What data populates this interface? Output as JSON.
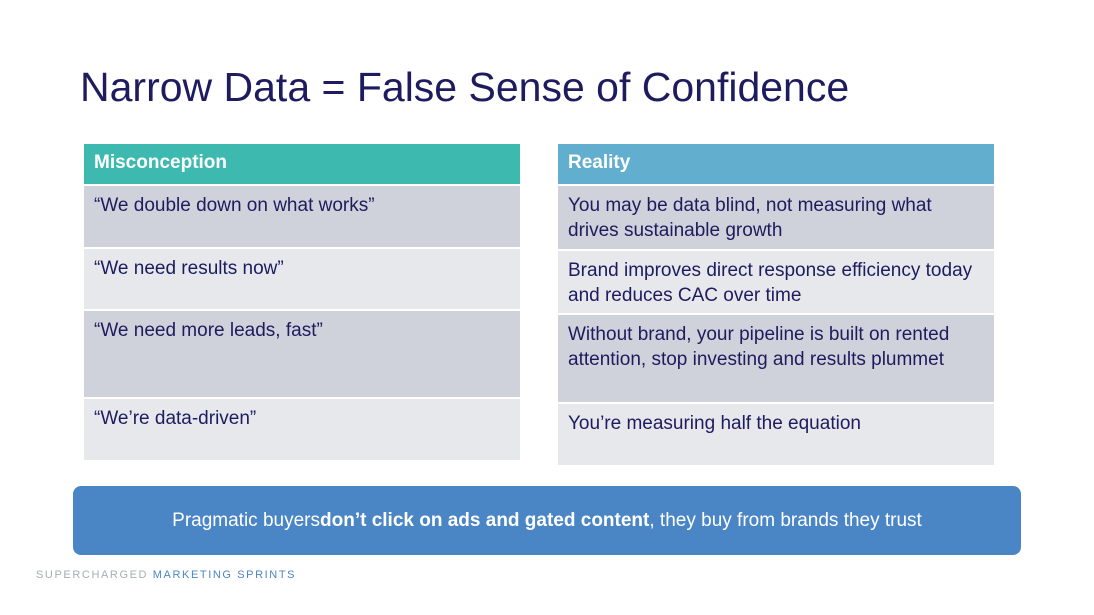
{
  "slide": {
    "title": "Narrow Data = False Sense of Confidence"
  },
  "misconception": {
    "header": "Misconception",
    "rows": [
      "“We double down on what works”",
      "“We need results now”",
      "“We need more leads, fast”",
      "“We’re data-driven”"
    ]
  },
  "reality": {
    "header": "Reality",
    "rows": [
      "You may be data blind, not measuring what drives sustainable growth",
      "Brand improves direct response efficiency today and reduces CAC over time",
      "Without brand, your pipeline is built on rented attention, stop investing and results plummet",
      "You’re measuring half the equation"
    ]
  },
  "banner": {
    "text_before": "Pragmatic buyers ",
    "text_bold": "don’t click on ads and gated content",
    "text_after": ", they buy from brands they trust"
  },
  "footer": {
    "part1": "SUPERCHARGED",
    "part2": "MARKETING SPRINTS"
  },
  "colors": {
    "title": "#1e1b5e",
    "misconception_header": "#3db9b0",
    "reality_header": "#62aece",
    "row_dark": "#cfd2da",
    "row_light": "#e6e8ec",
    "banner": "#4a86c5",
    "footer_gray": "#a7adb5",
    "footer_blue": "#4a86c5"
  }
}
